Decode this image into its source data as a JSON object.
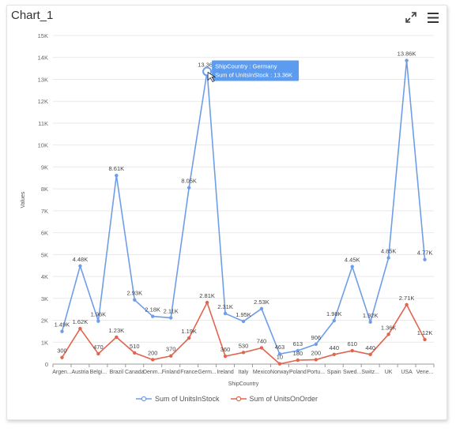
{
  "header": {
    "title": "Chart_1",
    "expand_icon": "expand-icon",
    "menu_icon": "hamburger-menu-icon"
  },
  "colors": {
    "stock": "#6f9ee8",
    "order": "#e0654f",
    "tooltip_bg": "#5b9cf0",
    "grid": "#e9e9e9",
    "axis": "#999999"
  },
  "tooltip": {
    "line1": "ShipCountry : Germany",
    "line2": "Sum of UnitsInStock : 13.36K"
  },
  "chart_data": {
    "type": "line",
    "title": "",
    "xlabel": "ShipCountry",
    "ylabel": "Values",
    "ylim": [
      0,
      15000
    ],
    "y_ticks": [
      "0",
      "1K",
      "2K",
      "3K",
      "4K",
      "5K",
      "6K",
      "7K",
      "8K",
      "9K",
      "10K",
      "11K",
      "12K",
      "13K",
      "14K",
      "15K"
    ],
    "grid": true,
    "legend_position": "bottom",
    "categories": [
      "Argen...",
      "Austria",
      "Belgi...",
      "Brazil",
      "Canada",
      "Denm...",
      "Finland",
      "France",
      "Germ...",
      "Ireland",
      "Italy",
      "Mexico",
      "Norway",
      "Poland",
      "Portu...",
      "Spain",
      "Swed...",
      "Switz...",
      "UK",
      "USA",
      "Vene..."
    ],
    "series": [
      {
        "name": "Sum of UnitsInStock",
        "values": [
          1490,
          4480,
          1960,
          8610,
          2930,
          2180,
          2110,
          8050,
          13360,
          2310,
          1950,
          2530,
          463,
          613,
          906,
          1980,
          4450,
          1920,
          4850,
          13860,
          4770
        ],
        "labels": [
          "1.49K",
          "4.48K",
          "1.96K",
          "8.61K",
          "2.93K",
          "2.18K",
          "2.11K",
          "8.05K",
          "13.36K",
          "2.31K",
          "1.95K",
          "2.53K",
          "463",
          "613",
          "906",
          "1.98K",
          "4.45K",
          "1.92K",
          "4.85K",
          "13.86K",
          "4.77K"
        ]
      },
      {
        "name": "Sum of UnitsOnOrder",
        "values": [
          300,
          1620,
          470,
          1230,
          510,
          200,
          370,
          1190,
          2810,
          360,
          530,
          740,
          10,
          180,
          200,
          440,
          610,
          440,
          1360,
          2710,
          1120
        ],
        "labels": [
          "300",
          "1.62K",
          "470",
          "1.23K",
          "510",
          "200",
          "370",
          "1.19K",
          "2.81K",
          "360",
          "530",
          "740",
          "10",
          "180",
          "200",
          "440",
          "610",
          "440",
          "1.36K",
          "2.71K",
          "1.12K"
        ]
      }
    ],
    "highlighted_index": 8
  }
}
